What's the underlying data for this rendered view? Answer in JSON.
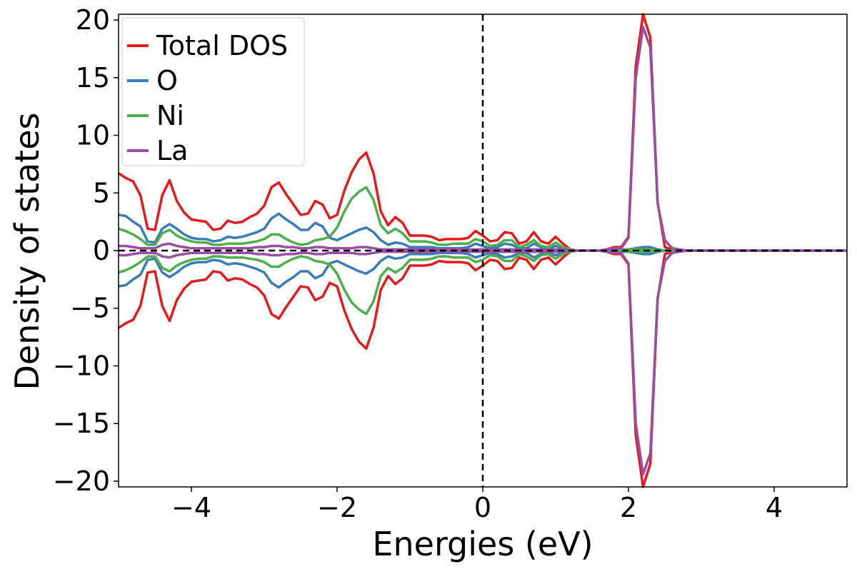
{
  "chart_data": {
    "type": "line",
    "title": "",
    "xlabel": "Energies (eV)",
    "ylabel": "Density of states",
    "xlim": [
      -5,
      5
    ],
    "ylim": [
      -20.5,
      20.5
    ],
    "xticks": [
      -4,
      -2,
      0,
      2,
      4
    ],
    "yticks": [
      -20,
      -15,
      -10,
      -5,
      0,
      5,
      10,
      15,
      20
    ],
    "xtick_labels": [
      "−4",
      "−2",
      "0",
      "2",
      "4"
    ],
    "ytick_labels": [
      "−20",
      "−15",
      "−10",
      "−5",
      "0",
      "5",
      "10",
      "15",
      "20"
    ],
    "grid": false,
    "legend_position": "top-left",
    "reference_lines": [
      {
        "orientation": "vertical",
        "value": 0,
        "style": "dashed",
        "color": "#000000"
      },
      {
        "orientation": "horizontal",
        "value": 0,
        "style": "dashed",
        "color": "#000000"
      }
    ],
    "mirrored": true,
    "x": [
      -5.0,
      -4.9,
      -4.8,
      -4.7,
      -4.6,
      -4.5,
      -4.4,
      -4.3,
      -4.2,
      -4.1,
      -4.0,
      -3.9,
      -3.8,
      -3.7,
      -3.6,
      -3.5,
      -3.4,
      -3.3,
      -3.2,
      -3.1,
      -3.0,
      -2.9,
      -2.8,
      -2.7,
      -2.6,
      -2.5,
      -2.4,
      -2.3,
      -2.2,
      -2.1,
      -2.0,
      -1.9,
      -1.8,
      -1.7,
      -1.6,
      -1.5,
      -1.4,
      -1.3,
      -1.2,
      -1.1,
      -1.0,
      -0.9,
      -0.8,
      -0.7,
      -0.6,
      -0.5,
      -0.4,
      -0.3,
      -0.2,
      -0.1,
      0.0,
      0.1,
      0.2,
      0.3,
      0.4,
      0.5,
      0.6,
      0.7,
      0.8,
      0.9,
      1.0,
      1.1,
      1.2,
      1.3,
      1.4,
      1.5,
      1.6,
      1.7,
      1.8,
      1.9,
      2.0,
      2.1,
      2.2,
      2.3,
      2.4,
      2.5,
      2.6,
      2.7,
      2.8,
      2.9,
      3.0,
      3.1,
      3.2,
      3.3,
      3.4,
      3.5,
      3.6,
      3.7,
      3.8,
      3.9,
      4.0,
      4.1,
      4.2,
      4.3,
      4.4,
      4.5,
      4.6,
      4.7,
      4.8,
      4.9,
      5.0
    ],
    "series": [
      {
        "name": "Total DOS",
        "color": "#e41a1c",
        "values": [
          6.7,
          6.3,
          6.0,
          4.8,
          1.9,
          1.8,
          4.8,
          6.1,
          4.3,
          3.3,
          2.7,
          2.6,
          2.5,
          1.8,
          1.9,
          2.6,
          2.4,
          2.5,
          2.9,
          3.2,
          3.9,
          5.5,
          5.9,
          4.9,
          4.0,
          3.1,
          3.2,
          4.3,
          4.0,
          2.8,
          3.1,
          5.2,
          6.8,
          7.9,
          8.5,
          6.7,
          3.4,
          2.2,
          2.9,
          2.4,
          1.3,
          1.3,
          1.3,
          1.2,
          0.9,
          1.0,
          1.0,
          1.0,
          1.1,
          1.7,
          1.3,
          0.8,
          0.9,
          1.6,
          1.5,
          0.6,
          0.8,
          1.6,
          0.8,
          0.6,
          1.2,
          0.6,
          0.1,
          0.0,
          0.0,
          0.0,
          0.0,
          0.1,
          0.3,
          0.3,
          1.2,
          16.0,
          20.5,
          18.5,
          4.2,
          0.3,
          0.1,
          0.0,
          0.0,
          0.0,
          0.0,
          0.0,
          0.0,
          0.0,
          0.0,
          0.0,
          0.0,
          0.0,
          0.0,
          0.0,
          0.0,
          0.0,
          0.0,
          0.0,
          0.0,
          0.0,
          0.0,
          0.0,
          0.0,
          0.0,
          0.0
        ]
      },
      {
        "name": "O",
        "color": "#377eb8",
        "values": [
          3.1,
          3.0,
          2.5,
          2.1,
          0.8,
          0.7,
          1.9,
          2.3,
          1.9,
          1.4,
          1.1,
          1.0,
          1.0,
          0.8,
          0.9,
          1.2,
          1.1,
          1.2,
          1.4,
          1.6,
          1.9,
          2.8,
          3.2,
          2.7,
          2.3,
          1.8,
          1.8,
          2.4,
          2.1,
          1.1,
          0.9,
          1.2,
          1.5,
          1.8,
          2.0,
          1.6,
          0.9,
          0.5,
          0.7,
          0.6,
          0.3,
          0.3,
          0.3,
          0.3,
          0.2,
          0.2,
          0.2,
          0.2,
          0.3,
          0.6,
          0.4,
          0.2,
          0.3,
          0.6,
          0.5,
          0.2,
          0.2,
          0.6,
          0.3,
          0.2,
          0.4,
          0.2,
          0.0,
          0.0,
          0.0,
          0.0,
          0.0,
          0.0,
          0.1,
          0.1,
          0.1,
          0.2,
          0.3,
          0.3,
          0.1,
          0.0,
          0.0,
          0.0,
          0.0,
          0.0,
          0.0,
          0.0,
          0.0,
          0.0,
          0.0,
          0.0,
          0.0,
          0.0,
          0.0,
          0.0,
          0.0,
          0.0,
          0.0,
          0.0,
          0.0,
          0.0,
          0.0,
          0.0,
          0.0,
          0.0,
          0.0
        ]
      },
      {
        "name": "Ni",
        "color": "#4daf4a",
        "values": [
          1.9,
          1.7,
          1.4,
          1.0,
          0.5,
          0.5,
          1.5,
          1.8,
          1.3,
          1.0,
          0.8,
          0.7,
          0.7,
          0.5,
          0.5,
          0.6,
          0.6,
          0.6,
          0.7,
          0.8,
          1.0,
          1.4,
          1.4,
          1.0,
          0.7,
          0.5,
          0.6,
          0.9,
          1.0,
          1.2,
          2.0,
          3.4,
          4.5,
          5.1,
          5.5,
          4.4,
          2.2,
          1.5,
          1.9,
          1.5,
          0.8,
          0.8,
          0.8,
          0.7,
          0.5,
          0.5,
          0.6,
          0.6,
          0.6,
          1.0,
          0.8,
          0.4,
          0.5,
          0.9,
          0.9,
          0.3,
          0.5,
          0.9,
          0.4,
          0.3,
          0.7,
          0.3,
          0.1,
          0.0,
          0.0,
          0.0,
          0.0,
          0.0,
          0.0,
          0.0,
          0.1,
          0.1,
          0.1,
          0.1,
          0.0,
          0.0,
          0.0,
          0.0,
          0.0,
          0.0,
          0.0,
          0.0,
          0.0,
          0.0,
          0.0,
          0.0,
          0.0,
          0.0,
          0.0,
          0.0,
          0.0,
          0.0,
          0.0,
          0.0,
          0.0,
          0.0,
          0.0,
          0.0,
          0.0,
          0.0,
          0.0
        ]
      },
      {
        "name": "La",
        "color": "#984ea3",
        "values": [
          0.4,
          0.4,
          0.3,
          0.2,
          0.2,
          0.2,
          0.5,
          0.6,
          0.4,
          0.3,
          0.2,
          0.2,
          0.2,
          0.2,
          0.2,
          0.2,
          0.2,
          0.2,
          0.2,
          0.3,
          0.3,
          0.4,
          0.4,
          0.3,
          0.3,
          0.2,
          0.2,
          0.3,
          0.3,
          0.2,
          0.2,
          0.2,
          0.2,
          0.3,
          0.3,
          0.2,
          0.1,
          0.1,
          0.1,
          0.1,
          0.1,
          0.1,
          0.1,
          0.1,
          0.1,
          0.1,
          0.1,
          0.1,
          0.1,
          0.1,
          0.1,
          0.1,
          0.1,
          0.1,
          0.1,
          0.1,
          0.1,
          0.1,
          0.1,
          0.1,
          0.1,
          0.1,
          0.0,
          0.0,
          0.0,
          0.0,
          0.0,
          0.1,
          0.2,
          0.2,
          1.1,
          15.0,
          19.4,
          17.6,
          4.1,
          0.9,
          0.2,
          0.1,
          0.0,
          0.0,
          0.0,
          0.0,
          0.0,
          0.0,
          0.0,
          0.0,
          0.0,
          0.0,
          0.0,
          0.0,
          0.0,
          0.0,
          0.0,
          0.0,
          0.0,
          0.0,
          0.0,
          0.0,
          0.0,
          0.0,
          0.0
        ]
      }
    ]
  }
}
